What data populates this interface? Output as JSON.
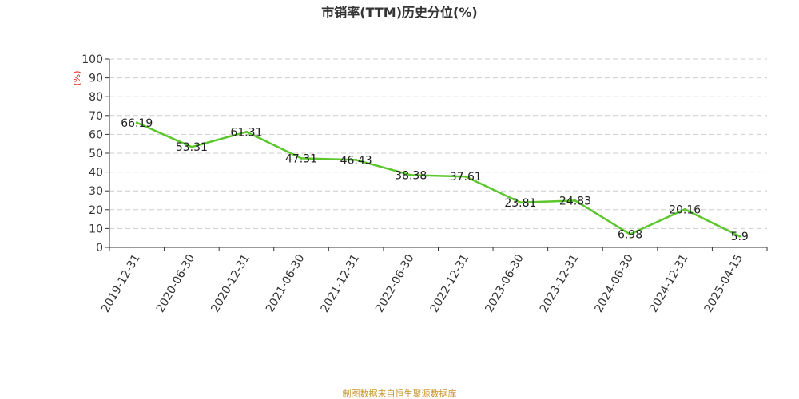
{
  "chart_data": {
    "type": "line",
    "title": "市销率(TTM)历史分位(%)",
    "ylabel": "(%)",
    "xlabel": "",
    "ylim": [
      0,
      100
    ],
    "yticks": [
      0,
      10,
      20,
      30,
      40,
      50,
      60,
      70,
      80,
      90,
      100
    ],
    "categories": [
      "2019-12-31",
      "2020-06-30",
      "2020-12-31",
      "2021-06-30",
      "2021-12-31",
      "2022-06-30",
      "2022-12-31",
      "2023-06-30",
      "2023-12-31",
      "2024-06-30",
      "2024-12-31",
      "2025-04-15"
    ],
    "series": [
      {
        "values": [
          66.19,
          53.31,
          61.31,
          47.31,
          46.43,
          38.38,
          37.61,
          23.81,
          24.83,
          6.98,
          20.16,
          5.9
        ],
        "color": "#5bc72c",
        "labels": [
          "66.19",
          "53.31",
          "61.31",
          "47.31",
          "46.43",
          "38.38",
          "37.61",
          "23.81",
          "24.83",
          "6.98",
          "20.16",
          "5.9"
        ]
      }
    ],
    "grid": true,
    "legend": "none",
    "unit_color": "#e8231c"
  },
  "footer": {
    "source": "制图数据来自恒生聚源数据库"
  }
}
